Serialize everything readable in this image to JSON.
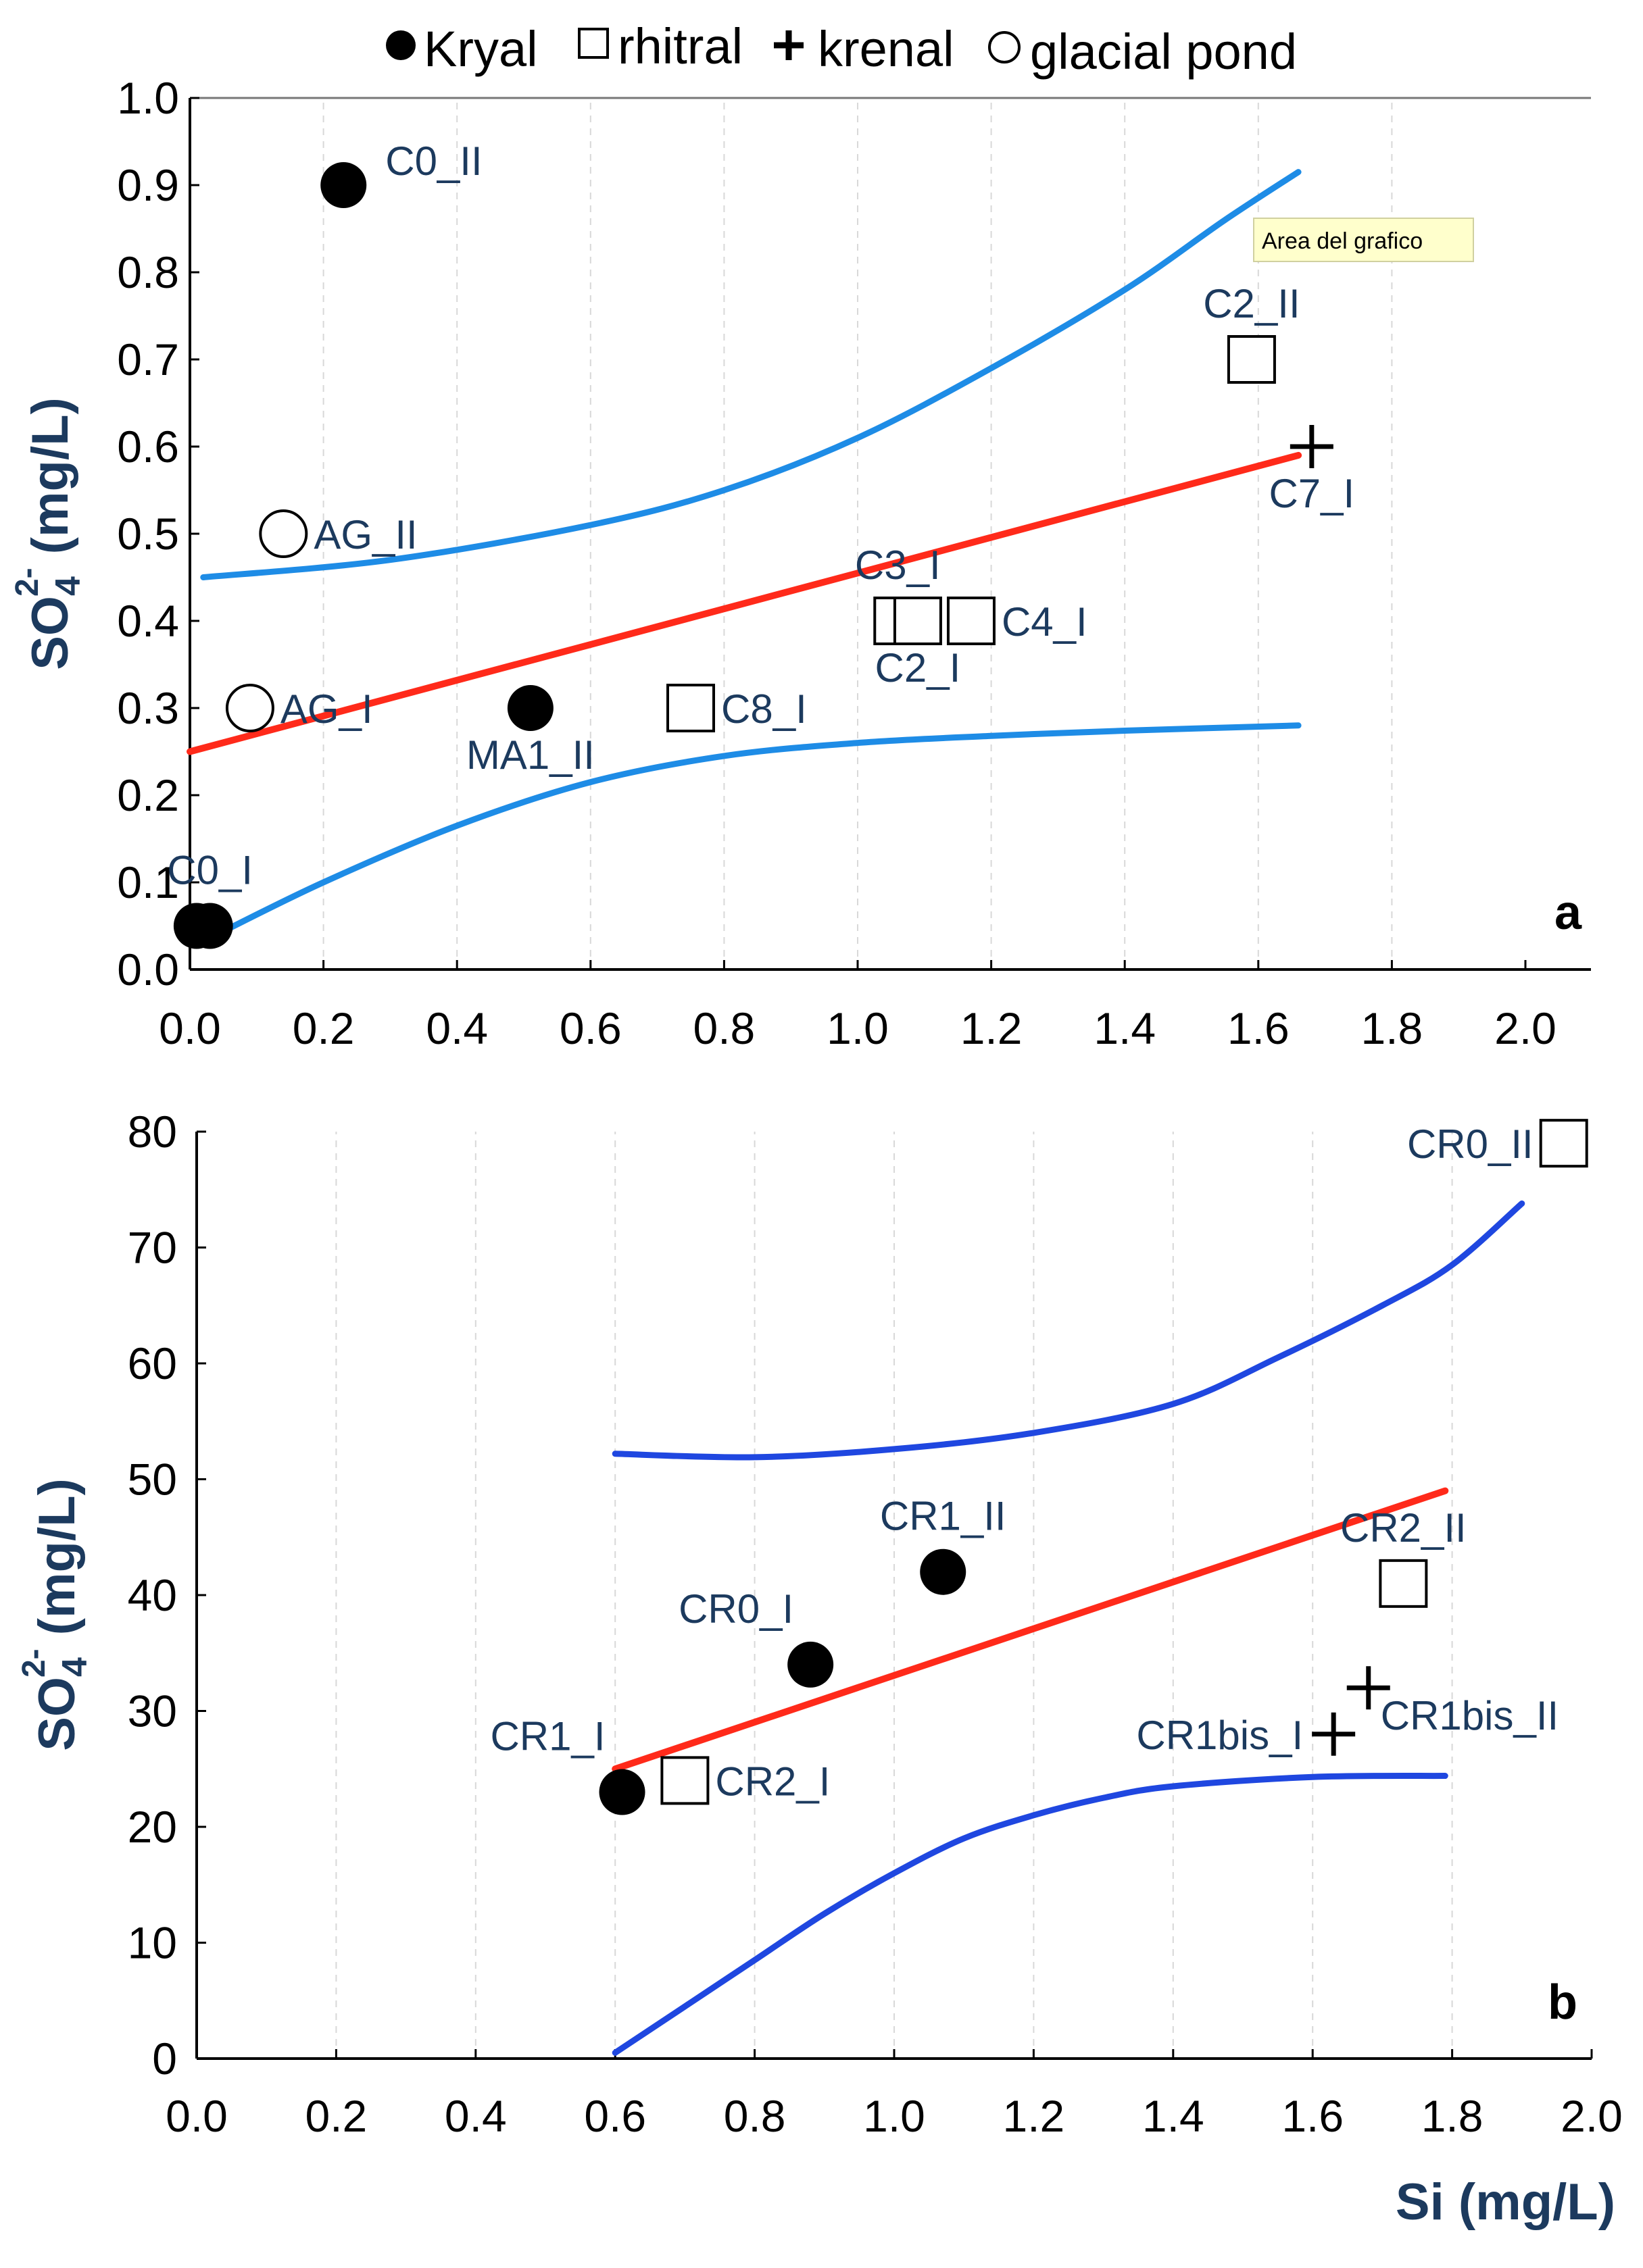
{
  "legend": [
    {
      "label": "Kryal",
      "marker": "filled-circle"
    },
    {
      "label": "rhitral",
      "marker": "open-square"
    },
    {
      "label": "krenal",
      "marker": "plus"
    },
    {
      "label": "glacial pond",
      "marker": "open-circle"
    }
  ],
  "tooltip": "Area del grafico",
  "colors": {
    "regression": "#ff2a1a",
    "band_a": "#1e8ce6",
    "band_b": "#1f47e0",
    "label": "#1c3a5e"
  },
  "chart_data": [
    {
      "type": "scatter",
      "panel": "a",
      "ylabel_main": "SO",
      "ylabel_sub": "4",
      "ylabel_sup": "2-",
      "ylabel_unit": "(mg/L)",
      "xlim": [
        0.0,
        2.0
      ],
      "ylim": [
        0.0,
        1.0
      ],
      "xticks": [
        "0.0",
        "0.2",
        "0.4",
        "0.6",
        "0.8",
        "1.0",
        "1.2",
        "1.4",
        "1.6",
        "1.8",
        "2.0"
      ],
      "yticks": [
        "0.0",
        "0.1",
        "0.2",
        "0.3",
        "0.4",
        "0.5",
        "0.6",
        "0.7",
        "0.8",
        "0.9",
        "1.0"
      ],
      "points": [
        {
          "label": "C0_II",
          "x": 0.23,
          "y": 0.9,
          "type": "Kryal",
          "label_side": "upper-right"
        },
        {
          "label": "C0_I",
          "x": 0.03,
          "y": 0.05,
          "type": "Kryal",
          "label_side": "above"
        },
        {
          "label": "",
          "x": 0.01,
          "y": 0.05,
          "type": "Kryal",
          "label_side": "none"
        },
        {
          "label": "MA1_II",
          "x": 0.51,
          "y": 0.3,
          "type": "Kryal",
          "label_side": "below"
        },
        {
          "label": "AG_II",
          "x": 0.14,
          "y": 0.5,
          "type": "glacial pond",
          "label_side": "right"
        },
        {
          "label": "AG_I",
          "x": 0.09,
          "y": 0.3,
          "type": "glacial pond",
          "label_side": "right"
        },
        {
          "label": "C8_I",
          "x": 0.75,
          "y": 0.3,
          "type": "rhitral",
          "label_side": "right"
        },
        {
          "label": "C3_I",
          "x": 1.06,
          "y": 0.4,
          "type": "rhitral",
          "label_side": "above"
        },
        {
          "label": "C2_I",
          "x": 1.09,
          "y": 0.4,
          "type": "rhitral",
          "label_side": "below"
        },
        {
          "label": "C4_I",
          "x": 1.17,
          "y": 0.4,
          "type": "rhitral",
          "label_side": "right"
        },
        {
          "label": "C2_II",
          "x": 1.59,
          "y": 0.7,
          "type": "rhitral",
          "label_side": "above"
        },
        {
          "label": "C7_I",
          "x": 1.68,
          "y": 0.6,
          "type": "krenal",
          "label_side": "below"
        }
      ],
      "regression": {
        "x": [
          0.0,
          1.66
        ],
        "y": [
          0.25,
          0.59
        ]
      },
      "band_upper": {
        "x": [
          0.02,
          0.3,
          0.6,
          0.8,
          1.0,
          1.2,
          1.4,
          1.55,
          1.66
        ],
        "y": [
          0.45,
          0.47,
          0.51,
          0.55,
          0.61,
          0.69,
          0.78,
          0.86,
          0.915
        ]
      },
      "band_lower": {
        "x": [
          0.04,
          0.2,
          0.4,
          0.6,
          0.8,
          1.0,
          1.2,
          1.4,
          1.66
        ],
        "y": [
          0.04,
          0.1,
          0.165,
          0.215,
          0.245,
          0.26,
          0.268,
          0.274,
          0.28
        ]
      }
    },
    {
      "type": "scatter",
      "panel": "b",
      "ylabel_main": "SO",
      "ylabel_sub": "4",
      "ylabel_sup": "2-",
      "ylabel_unit": "(mg/L)",
      "xlabel": "Si (mg/L)",
      "xlim": [
        0.0,
        2.0
      ],
      "ylim": [
        0,
        80
      ],
      "xticks": [
        "0.0",
        "0.2",
        "0.4",
        "0.6",
        "0.8",
        "1.0",
        "1.2",
        "1.4",
        "1.6",
        "1.8",
        "2.0"
      ],
      "yticks": [
        "0",
        "10",
        "20",
        "30",
        "40",
        "50",
        "60",
        "70",
        "80"
      ],
      "points": [
        {
          "label": "CR1_II",
          "x": 1.07,
          "y": 42,
          "type": "Kryal",
          "label_side": "above"
        },
        {
          "label": "CR0_I",
          "x": 0.88,
          "y": 34,
          "type": "Kryal",
          "label_side": "upper-left"
        },
        {
          "label": "CR1_I",
          "x": 0.61,
          "y": 23,
          "type": "Kryal",
          "label_side": "upper-left"
        },
        {
          "label": "CR2_I",
          "x": 0.7,
          "y": 24,
          "type": "rhitral",
          "label_side": "right"
        },
        {
          "label": "CR2_II",
          "x": 1.73,
          "y": 41,
          "type": "rhitral",
          "label_side": "above"
        },
        {
          "label": "CR0_II",
          "x": 1.96,
          "y": 79,
          "type": "rhitral",
          "label_side": "left"
        },
        {
          "label": "CR1bis_I",
          "x": 1.63,
          "y": 28,
          "type": "krenal",
          "label_side": "left"
        },
        {
          "label": "CR1bis_II",
          "x": 1.68,
          "y": 32,
          "type": "krenal",
          "label_side": "lower-right"
        }
      ],
      "regression": {
        "x": [
          0.6,
          1.79
        ],
        "y": [
          25,
          49
        ]
      },
      "band_upper": {
        "x": [
          0.6,
          0.8,
          1.0,
          1.2,
          1.4,
          1.55,
          1.7,
          1.8,
          1.9
        ],
        "y": [
          52.2,
          51.9,
          52.6,
          54.0,
          56.5,
          60.5,
          65.0,
          68.5,
          73.8
        ]
      },
      "band_lower": {
        "x": [
          0.6,
          0.7,
          0.8,
          0.9,
          1.0,
          1.1,
          1.2,
          1.3,
          1.4,
          1.6,
          1.79
        ],
        "y": [
          0.5,
          4.5,
          8.5,
          12.5,
          16.0,
          19.0,
          21.0,
          22.5,
          23.5,
          24.3,
          24.4
        ]
      }
    }
  ]
}
